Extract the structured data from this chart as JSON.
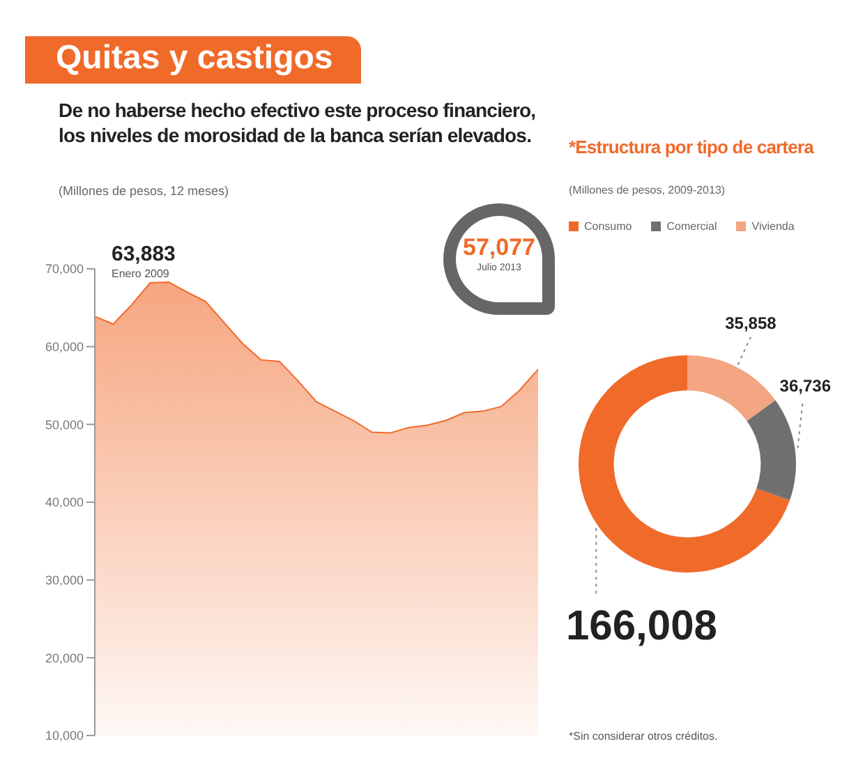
{
  "chart_data": [
    {
      "type": "area",
      "title": "Quitas y castigos",
      "subtitle": "De no haberse hecho efectivo este proceso financiero, los niveles de morosidad de la banca serían elevados.",
      "ylabel": "(Millones de pesos, 12 meses)",
      "categories": [
        null,
        null,
        null,
        null,
        null,
        null,
        null,
        null,
        null,
        null,
        null,
        null,
        null,
        null,
        null,
        null,
        null,
        null,
        null,
        null,
        null,
        null,
        null,
        null,
        null
      ],
      "values": [
        63883,
        62900,
        65400,
        68200,
        68300,
        67000,
        65800,
        63100,
        60400,
        58300,
        58100,
        55600,
        52900,
        51700,
        50500,
        49000,
        48900,
        49600,
        49900,
        50500,
        51500,
        51700,
        52300,
        54400,
        57077
      ],
      "color": "#f06a2a",
      "ylim": [
        10000,
        70000
      ],
      "yticks": [
        {
          "value": 10000,
          "label": "10,000"
        },
        {
          "value": 20000,
          "label": "20,000"
        },
        {
          "value": 30000,
          "label": "30,000"
        },
        {
          "value": 40000,
          "label": "40,000"
        },
        {
          "value": 50000,
          "label": "50,000"
        },
        {
          "value": 60000,
          "label": "60,000"
        },
        {
          "value": 70000,
          "label": "70,000"
        }
      ],
      "tick_labels": "y",
      "annotations": [
        "63,883",
        "Enero 2009",
        "57,077",
        "Julio 2013"
      ]
    },
    {
      "type": "donut",
      "title": "*Estructura por tipo de cartera",
      "subtitle": "(Millones de pesos, 2009-2013)",
      "categories": [
        "Consumo",
        "Comercial",
        "Vivienda"
      ],
      "values": [
        166008,
        36736,
        35858
      ],
      "colors": [
        "#f06a2a",
        "#707070",
        "#f4a582"
      ],
      "legend": "top",
      "value_labels": [
        "166,008",
        "36,736",
        "35,858"
      ],
      "annotations": [
        "*Sin considerar otros créditos."
      ]
    }
  ]
}
